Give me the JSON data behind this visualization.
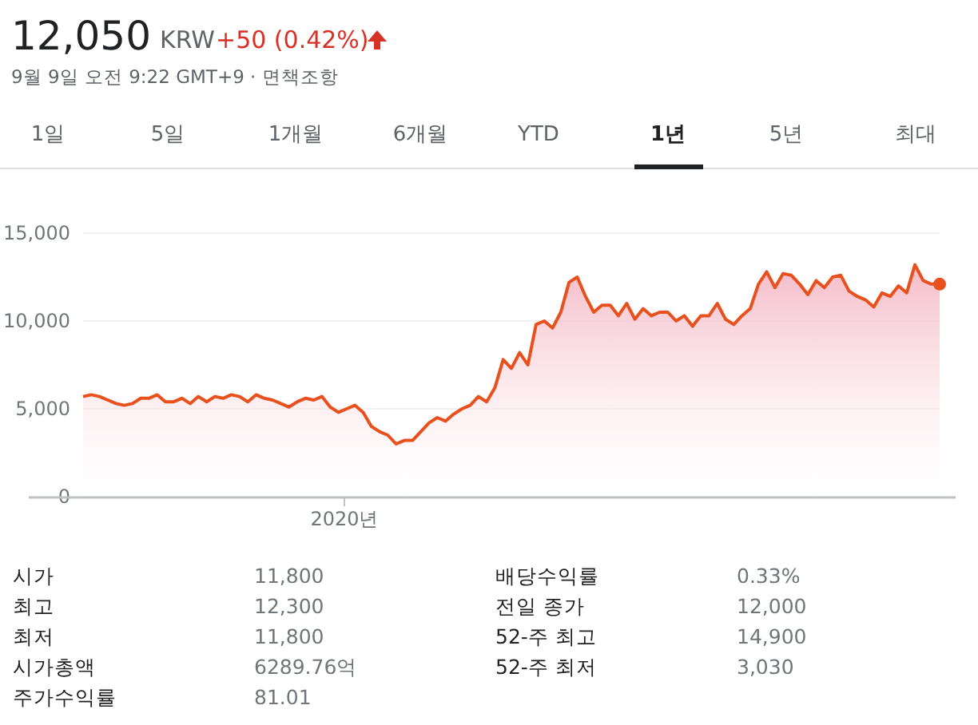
{
  "chart_data": {
    "type": "area",
    "title": "12,050",
    "annotations": [
      "2020년",
      "KRW",
      "+50 (0.42%)",
      "9월 9일 오전 9:22 GMT+9 · 면책조항",
      "1일",
      "5일",
      "1개월",
      "6개월",
      "YTD",
      "1년",
      "5년",
      "최대",
      "시가",
      "11,800",
      "배당수익률",
      "0.33%",
      "최고",
      "12,300",
      "전일 종가",
      "12,000",
      "최저",
      "11,800",
      "52-주 최고",
      "14,900",
      "시가총액",
      "6289.76억",
      "52-주 최저",
      "3,030",
      "주가수익률",
      "81.01"
    ],
    "categories": [
      null,
      null,
      null,
      null,
      null,
      null,
      null,
      null,
      null,
      null,
      null,
      null,
      null,
      null,
      null,
      null,
      null,
      null,
      null,
      null,
      null,
      null,
      null,
      null,
      null,
      null,
      null,
      null,
      null,
      null,
      null,
      null,
      null,
      null,
      null,
      null,
      null,
      null,
      null,
      null,
      null,
      null,
      null,
      null,
      null,
      null,
      null,
      null,
      null,
      null,
      null,
      null,
      null,
      null,
      null,
      null,
      null,
      null,
      null,
      null,
      null,
      null,
      null,
      null,
      null,
      null,
      null,
      null,
      null,
      null,
      null,
      null,
      null,
      null,
      null,
      null,
      null,
      null,
      null,
      null,
      null,
      null,
      null,
      null,
      null,
      null,
      null,
      null,
      null,
      null,
      null,
      null,
      null,
      null,
      null,
      null,
      null,
      null,
      null,
      null,
      null,
      null,
      null,
      null,
      null
    ],
    "series": [
      {
        "color": "#e8501e",
        "values": [
          5700,
          5800,
          5700,
          5500,
          5300,
          5200,
          5300,
          5600,
          5600,
          5800,
          5400,
          5400,
          5600,
          5300,
          5700,
          5400,
          5700,
          5600,
          5800,
          5700,
          5400,
          5800,
          5600,
          5500,
          5300,
          5100,
          5400,
          5600,
          5500,
          5700,
          5100,
          4800,
          5000,
          5200,
          4800,
          4000,
          3700,
          3500,
          3000,
          3200,
          3200,
          3700,
          4200,
          4500,
          4300,
          4700,
          5000,
          5200,
          5700,
          5400,
          6200,
          7800,
          7300,
          8200,
          7500,
          9800,
          10000,
          9600,
          10500,
          12200,
          12500,
          11400,
          10500,
          10900,
          10900,
          10300,
          11000,
          10100,
          10700,
          10300,
          10500,
          10500,
          10000,
          10300,
          9700,
          10300,
          10300,
          11000,
          10100,
          9800,
          10300,
          10700,
          12100,
          12800,
          11900,
          12700,
          12600,
          12100,
          11500,
          12300,
          11900,
          12500,
          12600,
          11700,
          11400,
          11200,
          10800,
          11600,
          11400,
          12000,
          11600,
          13200,
          12300,
          12100,
          12100
        ]
      }
    ],
    "ylim": [
      0,
      15000
    ],
    "yticks": [
      {
        "value": 0,
        "label": "0"
      },
      {
        "value": 5000,
        "label": "5,000"
      },
      {
        "value": 10000,
        "label": "10,000"
      },
      {
        "value": 15000,
        "label": "15,000"
      }
    ],
    "grid": "y"
  }
}
